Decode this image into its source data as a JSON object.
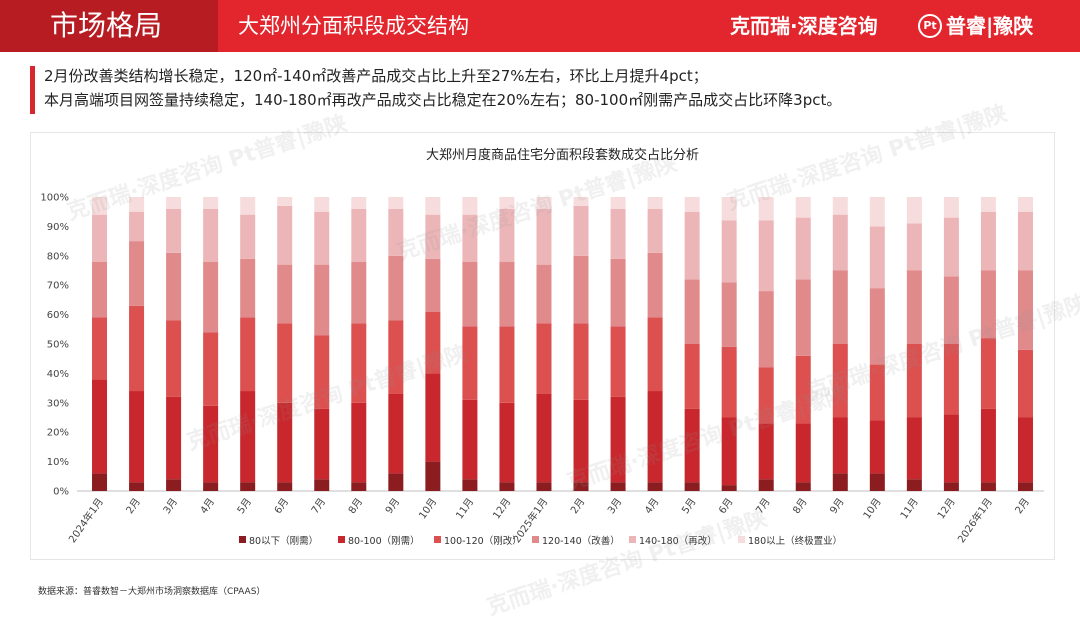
{
  "header": {
    "section_tab": "市场格局",
    "page_title": "大郑州分面积段成交结构",
    "brand1": "克而瑞·深度咨询",
    "brand_logo": "Pt",
    "brand2": "普睿|豫陕"
  },
  "summary": {
    "line1": "2月份改善类结构增长稳定，120㎡-140㎡改善产品成交占比上升至27%左右，环比上月提升4pct；",
    "line2": "本月高端项目网签量持续稳定，140-180㎡再改产品成交占比稳定在20%左右；80-100㎡刚需产品成交占比环降3pct。"
  },
  "source": "数据来源：普睿数智－大郑州市场洞察数据库（CPAAS）",
  "watermark_text": "克而瑞·深度咨询 Pt普睿|豫陕",
  "colors": {
    "header_red": "#e3262d",
    "tab_dark_red": "#b71c23",
    "series": [
      "#8b1c20",
      "#c8282d",
      "#dc5050",
      "#e08a8c",
      "#ecb6b8",
      "#f7dcdd"
    ]
  },
  "chart_data": {
    "type": "bar",
    "stacked": true,
    "title": "大郑州月度商品住宅分面积段套数成交占比分析",
    "xlabel": "",
    "ylabel": "",
    "ylim": [
      0,
      100
    ],
    "y_ticks": [
      "0%",
      "10%",
      "20%",
      "30%",
      "40%",
      "50%",
      "60%",
      "70%",
      "80%",
      "90%",
      "100%"
    ],
    "grid": false,
    "legend_position": "bottom",
    "categories": [
      "2024年1月",
      "2月",
      "3月",
      "4月",
      "5月",
      "6月",
      "7月",
      "8月",
      "9月",
      "10月",
      "11月",
      "12月",
      "2025年1月",
      "2月",
      "3月",
      "4月",
      "5月",
      "6月",
      "7月",
      "8月",
      "9月",
      "10月",
      "11月",
      "12月",
      "2026年1月",
      "2月"
    ],
    "series": [
      {
        "name": "80以下（刚需）",
        "values": [
          6,
          3,
          4,
          3,
          3,
          3,
          4,
          3,
          6,
          10,
          4,
          3,
          3,
          3,
          3,
          3,
          3,
          2,
          4,
          3,
          6,
          6,
          4,
          3,
          3,
          3
        ]
      },
      {
        "name": "80-100（刚需）",
        "values": [
          32,
          31,
          28,
          26,
          31,
          27,
          24,
          27,
          27,
          30,
          27,
          27,
          30,
          28,
          29,
          31,
          25,
          23,
          19,
          20,
          19,
          18,
          21,
          23,
          25,
          22
        ]
      },
      {
        "name": "100-120（刚改）",
        "values": [
          21,
          29,
          26,
          25,
          25,
          27,
          25,
          27,
          25,
          21,
          25,
          26,
          24,
          26,
          24,
          25,
          22,
          24,
          19,
          23,
          25,
          19,
          25,
          24,
          24,
          23
        ]
      },
      {
        "name": "120-140（改善）",
        "values": [
          19,
          22,
          23,
          24,
          20,
          20,
          24,
          21,
          22,
          18,
          22,
          22,
          20,
          23,
          23,
          22,
          22,
          22,
          26,
          26,
          25,
          26,
          25,
          23,
          23,
          27
        ]
      },
      {
        "name": "140-180（再改）",
        "values": [
          16,
          10,
          15,
          18,
          15,
          20,
          18,
          18,
          16,
          15,
          16,
          18,
          19,
          17,
          17,
          15,
          23,
          21,
          24,
          21,
          19,
          21,
          16,
          20,
          20,
          20
        ]
      },
      {
        "name": "180以上（终极置业）",
        "values": [
          6,
          5,
          4,
          4,
          6,
          3,
          5,
          4,
          4,
          6,
          6,
          4,
          4,
          3,
          4,
          4,
          5,
          8,
          8,
          7,
          6,
          10,
          9,
          7,
          5,
          5
        ]
      }
    ]
  }
}
